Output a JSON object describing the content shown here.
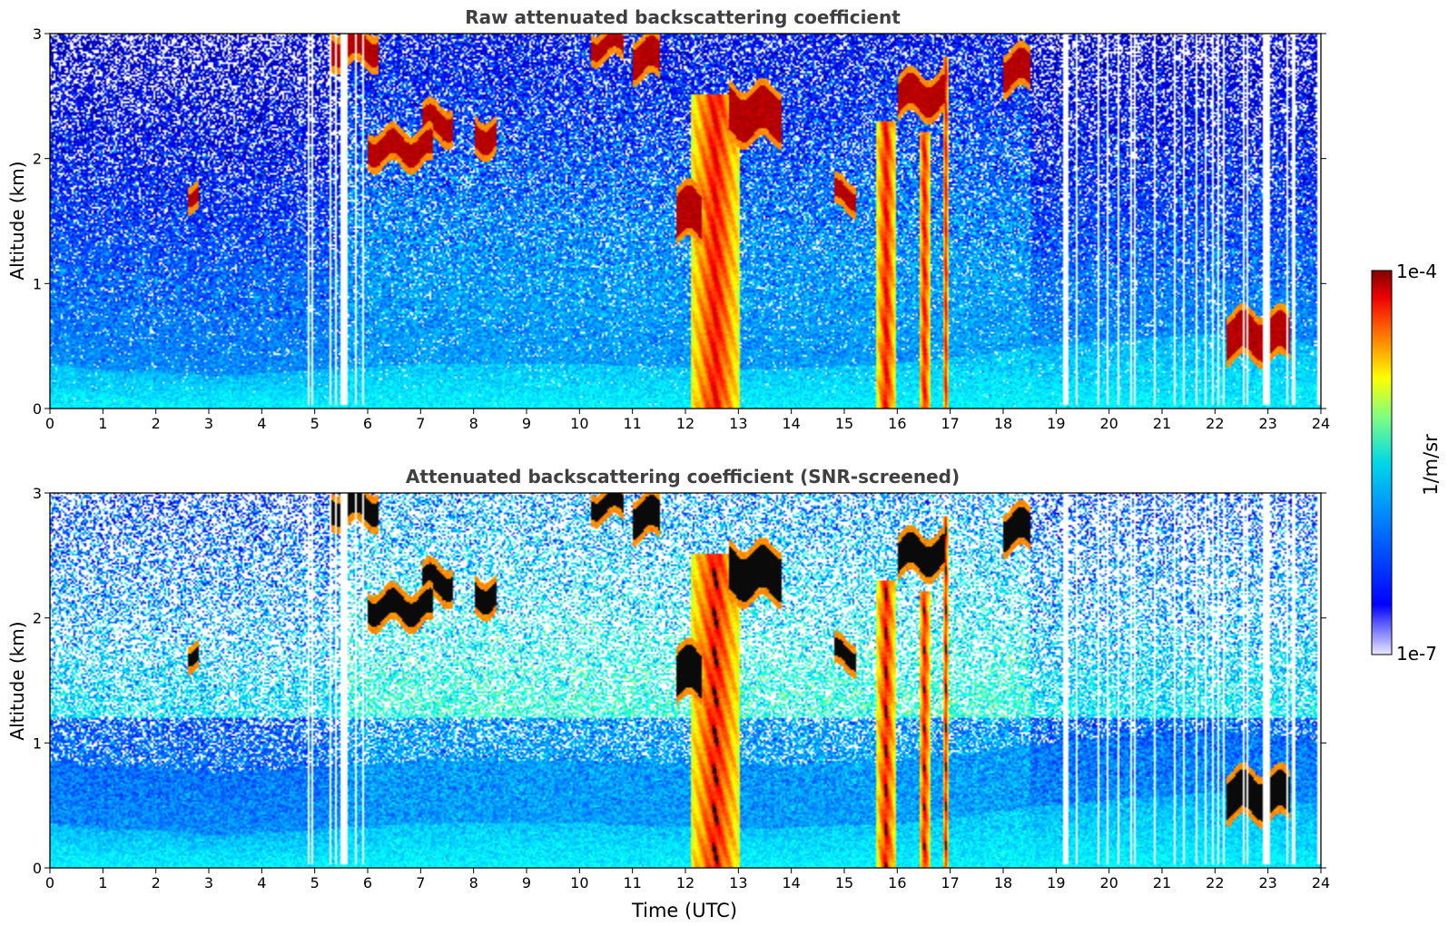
{
  "chart_data": [
    {
      "type": "heatmap",
      "title": "Raw attenuated backscattering coefficient",
      "xlabel": "",
      "ylabel": "Altitude (km)",
      "xlim": [
        0,
        24
      ],
      "ylim": [
        0,
        3
      ],
      "xticks": [
        "0",
        "1",
        "2",
        "3",
        "4",
        "5",
        "6",
        "7",
        "8",
        "9",
        "10",
        "11",
        "12",
        "13",
        "14",
        "15",
        "16",
        "17",
        "18",
        "19",
        "20",
        "21",
        "22",
        "23",
        "24"
      ],
      "yticks": [
        "0",
        "1",
        "2",
        "3"
      ],
      "screened": false,
      "features": {
        "boundary_layer": [
          [
            0,
            0.35
          ],
          [
            1,
            0.3
          ],
          [
            2,
            0.3
          ],
          [
            3,
            0.25
          ],
          [
            5,
            0.3
          ],
          [
            7,
            0.35
          ],
          [
            10,
            0.35
          ],
          [
            13,
            0.3
          ],
          [
            16,
            0.35
          ],
          [
            19,
            0.5
          ],
          [
            22,
            0.6
          ],
          [
            24,
            0.5
          ]
        ],
        "cloud_segments": [
          {
            "x": [
              5.3,
              6.2
            ],
            "y": [
              2.8,
              2.95
            ]
          },
          {
            "x": [
              6.0,
              7.2
            ],
            "y": [
              2.0,
              2.15
            ]
          },
          {
            "x": [
              7.0,
              7.6
            ],
            "y": [
              2.2,
              2.35
            ]
          },
          {
            "x": [
              8.0,
              8.4
            ],
            "y": [
              2.1,
              2.25
            ]
          },
          {
            "x": [
              2.6,
              2.8
            ],
            "y": [
              1.68,
              1.75
            ]
          },
          {
            "x": [
              10.2,
              10.8
            ],
            "y": [
              2.85,
              2.95
            ]
          },
          {
            "x": [
              11.0,
              11.5
            ],
            "y": [
              2.7,
              2.9
            ]
          },
          {
            "x": [
              11.8,
              12.3
            ],
            "y": [
              1.4,
              1.7
            ]
          },
          {
            "x": [
              12.8,
              13.8
            ],
            "y": [
              2.2,
              2.5
            ]
          },
          {
            "x": [
              14.8,
              15.2
            ],
            "y": [
              1.65,
              1.75
            ]
          },
          {
            "x": [
              16.0,
              16.9
            ],
            "y": [
              2.4,
              2.6
            ]
          },
          {
            "x": [
              18.0,
              18.5
            ],
            "y": [
              2.6,
              2.8
            ]
          },
          {
            "x": [
              22.2,
              23.4
            ],
            "y": [
              0.45,
              0.7
            ]
          }
        ],
        "precipitation_shafts": [
          {
            "x": [
              12.1,
              13.0
            ],
            "y": [
              0,
              2.5
            ]
          },
          {
            "x": [
              15.6,
              15.95
            ],
            "y": [
              0,
              2.3
            ]
          },
          {
            "x": [
              16.4,
              16.6
            ],
            "y": [
              0,
              2.2
            ]
          },
          {
            "x": [
              16.85,
              16.95
            ],
            "y": [
              0,
              2.8
            ]
          }
        ]
      }
    },
    {
      "type": "heatmap",
      "title": "Attenuated backscattering coefficient (SNR-screened)",
      "xlabel": "Time (UTC)",
      "ylabel": "Altitude (km)",
      "xlim": [
        0,
        24
      ],
      "ylim": [
        0,
        3
      ],
      "xticks": [
        "0",
        "1",
        "2",
        "3",
        "4",
        "5",
        "6",
        "7",
        "8",
        "9",
        "10",
        "11",
        "12",
        "13",
        "14",
        "15",
        "16",
        "17",
        "18",
        "19",
        "20",
        "21",
        "22",
        "23",
        "24"
      ],
      "yticks": [
        "0",
        "1",
        "2",
        "3"
      ],
      "screened": true
    }
  ],
  "colorbar": {
    "label": "1/m/sr",
    "max_label": "1e-4",
    "min_label": "1e-7",
    "scale": "log",
    "range": [
      1e-07,
      0.0001
    ],
    "colormap": "jet"
  }
}
